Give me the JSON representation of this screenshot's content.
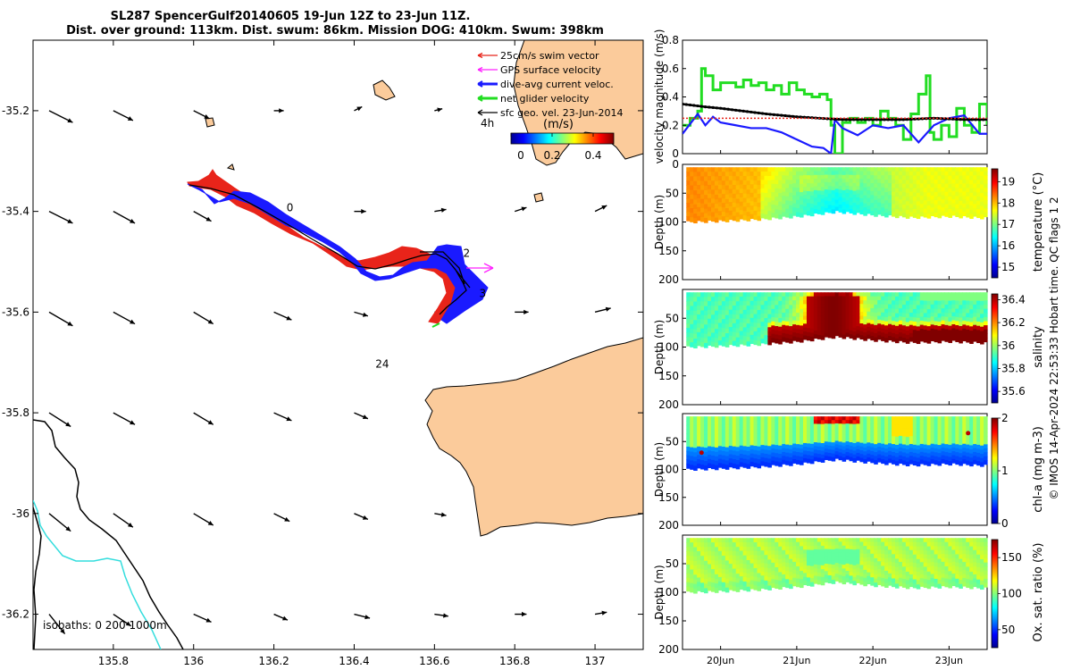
{
  "figure": {
    "title_line1": "SL287 SpencerGulf20140605 19-Jun 12Z to 23-Jun 11Z.",
    "title_line2": "Dist. over ground: 113km. Dist. swum: 86km. Mission DOG: 410km. Swum: 398km",
    "side_label": "© IMOS 14-Apr-2024 22:53:33 Hobart time. QC flags 1  2"
  },
  "colors": {
    "land": "#fbcb9b",
    "swim_vector": "#e8241a",
    "gps_velocity": "#ff22ff",
    "dive_avg_current": "#1a1aff",
    "net_glider_velocity": "#22dd22",
    "sfc_geo_vel": "#000000",
    "isobath_0": "#000000",
    "isobath_1000": "#33dddd"
  },
  "icons": {
    "vector_arrow": "arrow-icon"
  },
  "chart_data": [
    {
      "type": "map",
      "name": "track-map",
      "xlim": [
        135.6,
        137.12
      ],
      "ylim": [
        -36.27,
        -35.06
      ],
      "x_ticks": [
        135.8,
        136,
        136.2,
        136.4,
        136.6,
        136.8,
        137
      ],
      "x_tick_labels": [
        "135.8",
        "136",
        "136.2",
        "136.4",
        "136.6",
        "136.8",
        "137"
      ],
      "y_ticks": [
        -35.2,
        -35.4,
        -35.6,
        -35.8,
        -36,
        -36.2
      ],
      "y_tick_labels": [
        "-35.2",
        "-35.4",
        "-35.6",
        "-35.8",
        "-36",
        "-36.2"
      ],
      "legend": {
        "placement": "top-right",
        "entries": [
          "25cm/s swim vector",
          "GPS surface velocity",
          "dive-avg current veloc.",
          "net glider velocity",
          "sfc geo. vel. 23-Jun-2014"
        ]
      },
      "colorbar": {
        "unit": "(m/s)",
        "range": [
          0,
          0.5
        ],
        "ticks": [
          0,
          0.2,
          0.4
        ],
        "tick_labels": [
          "0",
          "0.2",
          "0.4"
        ]
      },
      "time_marker": "4h",
      "track_labels": [
        {
          "text": "0",
          "lon": 136.24,
          "lat": -35.4
        },
        {
          "text": "2",
          "lon": 136.68,
          "lat": -35.49
        },
        {
          "text": "3",
          "lon": 136.72,
          "lat": -35.57
        },
        {
          "text": "24",
          "lon": 136.47,
          "lat": -35.71
        }
      ],
      "isobaths_label": "isobaths: 0   200   1000m",
      "glider_track": [
        [
          136.0,
          -35.345
        ],
        [
          136.08,
          -35.36
        ],
        [
          136.16,
          -35.385
        ],
        [
          136.24,
          -35.415
        ],
        [
          136.32,
          -35.455
        ],
        [
          136.4,
          -35.5
        ],
        [
          136.48,
          -35.525
        ],
        [
          136.55,
          -35.505
        ],
        [
          136.6,
          -35.49
        ],
        [
          136.66,
          -35.51
        ],
        [
          136.7,
          -35.54
        ],
        [
          136.67,
          -35.57
        ],
        [
          136.62,
          -35.6
        ]
      ],
      "geo_vectors": {
        "lons": [
          135.6,
          135.8,
          136.0,
          136.2,
          136.4,
          136.6,
          136.8,
          137.0
        ],
        "lats": [
          -35.2,
          -35.4,
          -35.6,
          -35.8,
          -36.0,
          -36.2
        ],
        "u_v_m_s": [
          [
            [
              0.12,
              -0.06
            ],
            [
              0.1,
              -0.05
            ],
            [
              0.08,
              -0.04
            ],
            [
              0.05,
              0.0
            ],
            [
              0.04,
              0.02
            ],
            [
              0.04,
              0.01
            ],
            [
              0.0,
              0.0
            ],
            [
              0.0,
              0.0
            ]
          ],
          [
            [
              0.12,
              -0.06
            ],
            [
              0.11,
              -0.06
            ],
            [
              0.09,
              -0.05
            ],
            [
              0.07,
              -0.03
            ],
            [
              0.06,
              0.0
            ],
            [
              0.06,
              0.01
            ],
            [
              0.06,
              0.02
            ],
            [
              0.06,
              0.03
            ]
          ],
          [
            [
              0.12,
              -0.07
            ],
            [
              0.11,
              -0.06
            ],
            [
              0.1,
              -0.06
            ],
            [
              0.09,
              -0.04
            ],
            [
              0.07,
              -0.02
            ],
            [
              0.06,
              0.0
            ],
            [
              0.07,
              0.0
            ],
            [
              0.08,
              0.02
            ]
          ],
          [
            [
              0.11,
              -0.07
            ],
            [
              0.11,
              -0.06
            ],
            [
              0.1,
              -0.06
            ],
            [
              0.09,
              -0.04
            ],
            [
              0.07,
              -0.03
            ],
            [
              0.0,
              0.0
            ],
            [
              0.0,
              0.0
            ],
            [
              0.0,
              0.0
            ]
          ],
          [
            [
              0.11,
              -0.09
            ],
            [
              0.1,
              -0.07
            ],
            [
              0.1,
              -0.06
            ],
            [
              0.08,
              -0.04
            ],
            [
              0.07,
              -0.03
            ],
            [
              0.06,
              -0.01
            ],
            [
              0.0,
              0.0
            ],
            [
              0.0,
              0.0
            ]
          ],
          [
            [
              0.08,
              -0.1
            ],
            [
              0.09,
              -0.06
            ],
            [
              0.09,
              -0.04
            ],
            [
              0.07,
              -0.03
            ],
            [
              0.08,
              -0.02
            ],
            [
              0.07,
              -0.01
            ],
            [
              0.06,
              0.0
            ],
            [
              0.06,
              0.01
            ]
          ]
        ]
      }
    },
    {
      "type": "line",
      "name": "velocity-panel",
      "ylabel": "velocity magnitude (m/s)",
      "xlim": [
        19.5,
        23.5
      ],
      "ylim": [
        0,
        0.8
      ],
      "y_ticks": [
        0,
        0.2,
        0.4,
        0.6,
        0.8
      ],
      "y_tick_labels": [
        "0",
        "0.2",
        "0.4",
        "0.6",
        "0.8"
      ],
      "series": [
        {
          "name": "net glider velocity",
          "x": [
            19.5,
            19.6,
            19.7,
            19.75,
            19.8,
            19.9,
            20.0,
            20.1,
            20.2,
            20.3,
            20.4,
            20.5,
            20.6,
            20.7,
            20.8,
            20.9,
            21.0,
            21.1,
            21.2,
            21.3,
            21.4,
            21.45,
            21.5,
            21.6,
            21.7,
            21.8,
            21.9,
            22.0,
            22.1,
            22.2,
            22.3,
            22.4,
            22.5,
            22.6,
            22.7,
            22.75,
            22.8,
            22.9,
            23.0,
            23.1,
            23.2,
            23.3,
            23.4,
            23.5
          ],
          "y": [
            0.2,
            0.25,
            0.3,
            0.6,
            0.55,
            0.45,
            0.5,
            0.5,
            0.47,
            0.52,
            0.48,
            0.5,
            0.45,
            0.48,
            0.42,
            0.5,
            0.45,
            0.42,
            0.4,
            0.42,
            0.38,
            0.2,
            0.0,
            0.22,
            0.25,
            0.22,
            0.25,
            0.2,
            0.3,
            0.25,
            0.2,
            0.1,
            0.28,
            0.42,
            0.55,
            0.15,
            0.1,
            0.2,
            0.12,
            0.32,
            0.2,
            0.15,
            0.35,
            0.2
          ]
        },
        {
          "name": "dive-avg current veloc.",
          "x": [
            19.5,
            19.7,
            19.8,
            19.9,
            20.0,
            20.2,
            20.4,
            20.6,
            20.8,
            21.0,
            21.2,
            21.35,
            21.45,
            21.5,
            21.6,
            21.8,
            22.0,
            22.2,
            22.4,
            22.6,
            22.8,
            23.0,
            23.2,
            23.4,
            23.5
          ],
          "y": [
            0.14,
            0.28,
            0.2,
            0.26,
            0.22,
            0.2,
            0.18,
            0.18,
            0.15,
            0.1,
            0.05,
            0.04,
            0.0,
            0.24,
            0.18,
            0.13,
            0.2,
            0.18,
            0.2,
            0.08,
            0.2,
            0.25,
            0.27,
            0.14,
            0.14
          ]
        },
        {
          "name": "sfc geo. vel. 23-Jun-2014",
          "x": [
            19.5,
            19.8,
            20.0,
            20.3,
            20.6,
            21.0,
            21.3,
            21.6,
            22.0,
            22.4,
            22.8,
            23.2,
            23.5
          ],
          "y": [
            0.35,
            0.33,
            0.32,
            0.3,
            0.28,
            0.26,
            0.25,
            0.24,
            0.24,
            0.24,
            0.25,
            0.24,
            0.24
          ]
        },
        {
          "name": "25cm/s swim vector",
          "x": [
            19.5,
            23.5
          ],
          "y": [
            0.25,
            0.25
          ]
        }
      ]
    },
    {
      "type": "heatmap",
      "name": "temperature-section",
      "ylabel": "Depth (m)",
      "ylim": [
        200,
        0
      ],
      "y_ticks": [
        0,
        50,
        100,
        150,
        200
      ],
      "colorbar_label": "temperature (°C)",
      "colorbar_range": [
        14.5,
        19.6
      ],
      "colorbar_ticks": [
        15,
        16,
        17,
        18,
        19
      ],
      "colorbar_tick_labels": [
        "15",
        "16",
        "17",
        "18",
        "19"
      ],
      "depth_max_x": [
        19.5,
        20.0,
        20.5,
        21.0,
        21.5,
        22.0,
        22.5,
        23.0,
        23.5
      ],
      "depth_max_y": [
        100,
        98,
        95,
        90,
        82,
        88,
        92,
        90,
        93
      ],
      "surface_value_x": [
        19.5,
        20.5,
        21.0,
        21.5,
        22.0,
        22.7,
        23.5
      ],
      "surface_value_c": [
        18.3,
        18.0,
        17.3,
        16.9,
        17.3,
        17.6,
        17.6
      ]
    },
    {
      "type": "heatmap",
      "name": "salinity-section",
      "ylabel": "Depth (m)",
      "ylim": [
        200,
        0
      ],
      "y_ticks": [
        50,
        100,
        150,
        200
      ],
      "colorbar_label": "salinity",
      "colorbar_range": [
        35.5,
        36.45
      ],
      "colorbar_ticks": [
        35.6,
        35.8,
        36,
        36.2,
        36.4
      ],
      "colorbar_tick_labels": [
        "35.6",
        "35.8",
        "36",
        "36.2",
        "36.4"
      ],
      "depth_max_x": [
        19.5,
        20.0,
        20.5,
        21.0,
        21.5,
        22.0,
        22.5,
        23.0,
        23.5
      ],
      "depth_max_y": [
        100,
        98,
        95,
        90,
        82,
        88,
        92,
        90,
        93
      ],
      "surface_value_c": [
        35.92,
        35.9,
        35.85,
        35.95,
        35.9
      ]
    },
    {
      "type": "heatmap",
      "name": "chla-section",
      "ylabel": "Depth (m)",
      "ylim": [
        200,
        0
      ],
      "y_ticks": [
        50,
        100,
        150,
        200
      ],
      "colorbar_label": "chl-a (mg m-3)",
      "colorbar_range": [
        0,
        2
      ],
      "colorbar_ticks": [
        0,
        1,
        2
      ],
      "colorbar_tick_labels": [
        "0",
        "1",
        "2"
      ],
      "depth_max_x": [
        19.5,
        20.0,
        20.5,
        21.0,
        21.5,
        22.0,
        22.5,
        23.0,
        23.5
      ],
      "depth_max_y": [
        100,
        98,
        95,
        90,
        82,
        88,
        92,
        90,
        93
      ]
    },
    {
      "type": "heatmap",
      "name": "oxygen-section",
      "ylabel": "Depth (m)",
      "xlim": [
        19.5,
        23.5
      ],
      "x_ticks": [
        20,
        21,
        22,
        23
      ],
      "x_tick_labels": [
        "20Jun",
        "21Jun",
        "22Jun",
        "23Jun"
      ],
      "ylim": [
        200,
        0
      ],
      "y_ticks": [
        50,
        100,
        150,
        200
      ],
      "colorbar_label": "Ox. sat. ratio (%)",
      "colorbar_range": [
        25,
        175
      ],
      "colorbar_ticks": [
        50,
        100,
        150
      ],
      "colorbar_tick_labels": [
        "50",
        "100",
        "150"
      ],
      "depth_max_x": [
        19.5,
        20.0,
        20.5,
        21.0,
        21.5,
        22.0,
        22.5,
        23.0,
        23.5
      ],
      "depth_max_y": [
        100,
        98,
        95,
        90,
        82,
        88,
        92,
        90,
        93
      ]
    }
  ]
}
